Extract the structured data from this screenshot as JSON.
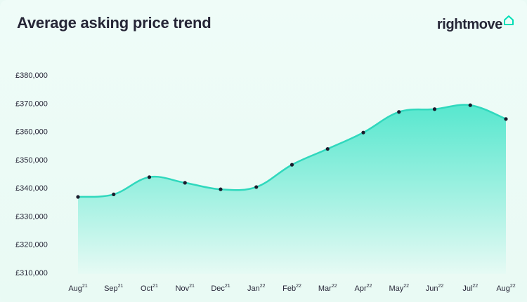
{
  "title": "Average asking price trend",
  "brand": {
    "name": "rightmove",
    "icon": "house-outline-icon",
    "icon_color": "#00deb6"
  },
  "colors": {
    "line": "#30d8bd",
    "fill_top": "#4fe6cc",
    "fill_bottom": "#e6faf4",
    "marker": "#1b1b2c",
    "background": "#eafaf5"
  },
  "chart_data": {
    "type": "area",
    "title": "Average asking price trend",
    "xlabel": "",
    "ylabel": "",
    "categories": [
      {
        "m": "Aug",
        "y": "21"
      },
      {
        "m": "Sep",
        "y": "21"
      },
      {
        "m": "Oct",
        "y": "21"
      },
      {
        "m": "Nov",
        "y": "21"
      },
      {
        "m": "Dec",
        "y": "21"
      },
      {
        "m": "Jan",
        "y": "22"
      },
      {
        "m": "Feb",
        "y": "22"
      },
      {
        "m": "Mar",
        "y": "22"
      },
      {
        "m": "Apr",
        "y": "22"
      },
      {
        "m": "May",
        "y": "22"
      },
      {
        "m": "Jun",
        "y": "22"
      },
      {
        "m": "Jul",
        "y": "22"
      },
      {
        "m": "Aug",
        "y": "22"
      }
    ],
    "values": [
      336800,
      337700,
      343800,
      341800,
      339500,
      340300,
      348200,
      353800,
      359600,
      366900,
      367900,
      369300,
      364400
    ],
    "ylim": [
      310000,
      380000
    ],
    "yticks": [
      310000,
      320000,
      330000,
      340000,
      350000,
      360000,
      370000,
      380000
    ],
    "ytick_labels": [
      "£310,000",
      "£320,000",
      "£330,000",
      "£340,000",
      "£350,000",
      "£360,000",
      "£370,000",
      "£380,000"
    ],
    "grid": false,
    "legend": "none"
  }
}
